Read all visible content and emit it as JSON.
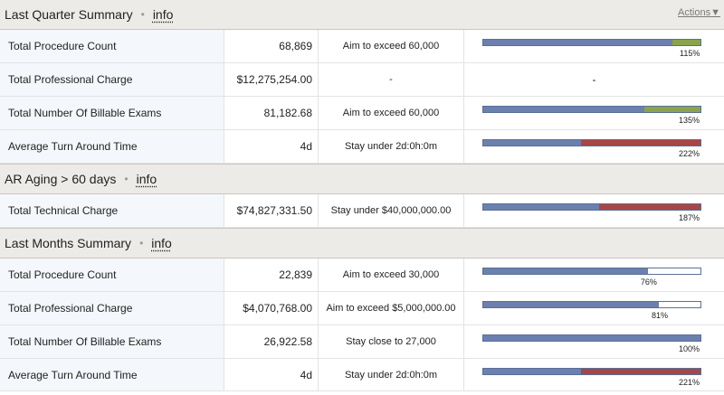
{
  "colors": {
    "base": "#6b80ad",
    "exceed": "#8aa34c",
    "over": "#a84545"
  },
  "sections": [
    {
      "title": "Last Quarter Summary",
      "info": "info",
      "actions": "Actions▼",
      "rows": [
        {
          "label": "Total Procedure Count",
          "value": "68,869",
          "goal": "Aim to exceed 60,000",
          "pct": "115%",
          "base": 0.87,
          "extra": 0.13,
          "extra_color": "exceed"
        },
        {
          "label": "Total Professional Charge",
          "value": "$12,275,254.00",
          "goal": "-",
          "dash": "-"
        },
        {
          "label": "Total Number Of Billable Exams",
          "value": "81,182.68",
          "goal": "Aim to exceed 60,000",
          "pct": "135%",
          "base": 0.74,
          "extra": 0.26,
          "extra_color": "exceed"
        },
        {
          "label": "Average Turn Around Time",
          "value": "4d",
          "goal": "Stay under 2d:0h:0m",
          "pct": "222%",
          "base": 0.45,
          "extra": 0.55,
          "extra_color": "over"
        }
      ]
    },
    {
      "title": "AR Aging > 60 days",
      "info": "info",
      "rows": [
        {
          "label": "Total Technical Charge",
          "value": "$74,827,331.50",
          "goal": "Stay under $40,000,000.00",
          "pct": "187%",
          "base": 0.535,
          "extra": 0.465,
          "extra_color": "over"
        }
      ]
    },
    {
      "title": "Last Months Summary",
      "info": "info",
      "rows": [
        {
          "label": "Total Procedure Count",
          "value": "22,839",
          "goal": "Aim to exceed 30,000",
          "pct": "76%",
          "base": 0.76,
          "extra": 0
        },
        {
          "label": "Total Professional Charge",
          "value": "$4,070,768.00",
          "goal": "Aim to exceed $5,000,000.00",
          "pct": "81%",
          "base": 0.81,
          "extra": 0
        },
        {
          "label": "Total Number Of Billable Exams",
          "value": "26,922.58",
          "goal": "Stay close to 27,000",
          "pct": "100%",
          "base": 1.0,
          "extra": 0
        },
        {
          "label": "Average Turn Around Time",
          "value": "4d",
          "goal": "Stay under 2d:0h:0m",
          "pct": "221%",
          "base": 0.45,
          "extra": 0.55,
          "extra_color": "over"
        }
      ]
    }
  ]
}
